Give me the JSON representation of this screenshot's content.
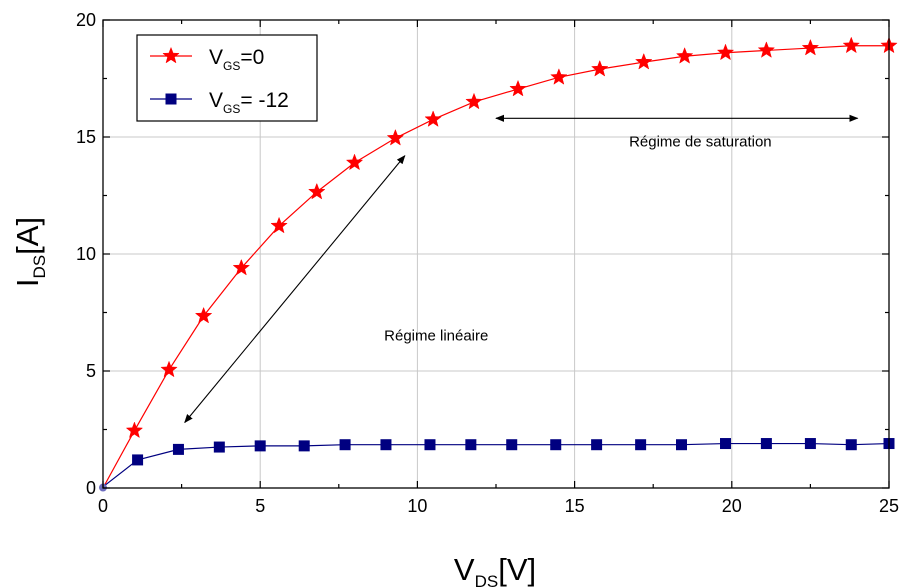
{
  "chart_data": {
    "type": "line",
    "xlabel": {
      "main": "V",
      "sub": "DS",
      "unit": "[V]"
    },
    "ylabel": {
      "main": "I",
      "sub": "DS",
      "unit": "[A]"
    },
    "xlim": [
      0,
      25
    ],
    "ylim": [
      0,
      20
    ],
    "xticks": [
      "0",
      "5",
      "10",
      "15",
      "20",
      "25"
    ],
    "yticks": [
      "0",
      "5",
      "10",
      "15",
      "20"
    ],
    "grid": true,
    "legend_position": "top-left",
    "series": [
      {
        "legend_main": "V",
        "legend_sub": "GS",
        "legend_rest": "=0",
        "color": "#ff0000",
        "marker": "star",
        "x": [
          0.0,
          1.0,
          2.1,
          3.2,
          4.4,
          5.6,
          6.8,
          8.0,
          9.3,
          10.5,
          11.8,
          13.2,
          14.5,
          15.8,
          17.2,
          18.5,
          19.8,
          21.1,
          22.5,
          23.8,
          25.0
        ],
        "y": [
          0.0,
          2.45,
          5.05,
          7.35,
          9.4,
          11.2,
          12.65,
          13.9,
          14.95,
          15.75,
          16.5,
          17.05,
          17.55,
          17.9,
          18.2,
          18.45,
          18.6,
          18.7,
          18.8,
          18.9,
          18.9
        ]
      },
      {
        "legend_main": "V",
        "legend_sub": "GS",
        "legend_rest": "= -12",
        "color": "#000080",
        "marker": "square",
        "x": [
          0.0,
          1.1,
          2.4,
          3.7,
          5.0,
          6.4,
          7.7,
          9.0,
          10.4,
          11.7,
          13.0,
          14.4,
          15.7,
          17.1,
          18.4,
          19.8,
          21.1,
          22.5,
          23.8,
          25.0
        ],
        "y": [
          0.05,
          1.2,
          1.65,
          1.75,
          1.8,
          1.8,
          1.85,
          1.85,
          1.85,
          1.85,
          1.85,
          1.85,
          1.85,
          1.85,
          1.85,
          1.9,
          1.9,
          1.9,
          1.85,
          1.9
        ]
      }
    ],
    "annotations": [
      {
        "text": "Régime linéaire",
        "x": 10.6,
        "y": 6.3,
        "arrow": {
          "from": [
            2.6,
            2.8
          ],
          "to": [
            9.6,
            14.2
          ],
          "double": true
        }
      },
      {
        "text": "Régime de saturation",
        "x": 19.0,
        "y": 14.6,
        "arrow": {
          "from": [
            12.5,
            15.8
          ],
          "to": [
            24.0,
            15.8
          ],
          "double": true
        }
      }
    ]
  }
}
